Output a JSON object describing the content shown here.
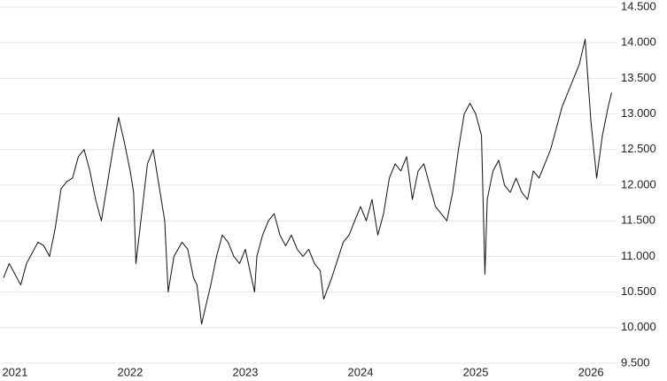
{
  "chart_data": {
    "type": "line",
    "color": "#111111",
    "grid": true,
    "y_axis_side": "right",
    "x": [
      2020.9,
      2020.95,
      2021.0,
      2021.05,
      2021.1,
      2021.15,
      2021.2,
      2021.25,
      2021.3,
      2021.35,
      2021.4,
      2021.45,
      2021.5,
      2021.55,
      2021.6,
      2021.65,
      2021.7,
      2021.75,
      2021.8,
      2021.85,
      2021.9,
      2021.95,
      2022.0,
      2022.03,
      2022.05,
      2022.1,
      2022.15,
      2022.2,
      2022.25,
      2022.3,
      2022.33,
      2022.38,
      2022.45,
      2022.5,
      2022.55,
      2022.58,
      2022.62,
      2022.7,
      2022.75,
      2022.8,
      2022.85,
      2022.9,
      2022.95,
      2023.0,
      2023.08,
      2023.1,
      2023.15,
      2023.2,
      2023.25,
      2023.3,
      2023.35,
      2023.4,
      2023.45,
      2023.5,
      2023.55,
      2023.6,
      2023.65,
      2023.68,
      2023.75,
      2023.8,
      2023.85,
      2023.9,
      2023.95,
      2024.0,
      2024.05,
      2024.1,
      2024.15,
      2024.2,
      2024.25,
      2024.3,
      2024.35,
      2024.4,
      2024.45,
      2024.5,
      2024.55,
      2024.6,
      2024.65,
      2024.7,
      2024.75,
      2024.8,
      2024.85,
      2024.9,
      2024.95,
      2025.0,
      2025.05,
      2025.08,
      2025.1,
      2025.15,
      2025.2,
      2025.25,
      2025.3,
      2025.35,
      2025.4,
      2025.45,
      2025.5,
      2025.55,
      2025.6,
      2025.65,
      2025.7,
      2025.75,
      2025.8,
      2025.85,
      2025.9,
      2025.95,
      2026.0,
      2026.05,
      2026.1,
      2026.15,
      2026.18
    ],
    "values": [
      10700,
      10900,
      10750,
      10600,
      10900,
      11050,
      11200,
      11150,
      11000,
      11400,
      11950,
      12050,
      12100,
      12400,
      12500,
      12200,
      11800,
      11500,
      12000,
      12500,
      12950,
      12600,
      12200,
      11900,
      10900,
      11600,
      12300,
      12500,
      12000,
      11500,
      10500,
      11000,
      11200,
      11100,
      10700,
      10600,
      10050,
      10600,
      11000,
      11300,
      11200,
      11000,
      10900,
      11100,
      10500,
      11000,
      11300,
      11500,
      11600,
      11300,
      11150,
      11300,
      11100,
      11000,
      11100,
      10900,
      10800,
      10400,
      10700,
      10950,
      11200,
      11300,
      11500,
      11700,
      11500,
      11800,
      11300,
      11600,
      12100,
      12300,
      12200,
      12400,
      11800,
      12200,
      12300,
      12000,
      11700,
      11600,
      11500,
      11900,
      12500,
      13000,
      13150,
      13000,
      12700,
      10750,
      11800,
      12200,
      12350,
      12000,
      11900,
      12100,
      11900,
      11800,
      12200,
      12100,
      12300,
      12500,
      12800,
      13100,
      13300,
      13500,
      13700,
      14050,
      12900,
      12100,
      12700,
      13100,
      13300
    ],
    "xlim": [
      2020.87,
      2026.23
    ],
    "xticks": [
      2021,
      2022,
      2023,
      2024,
      2025,
      2026
    ],
    "ylim": [
      9500,
      14500
    ],
    "yticks": [
      {
        "value": 9500,
        "label": "9.500"
      },
      {
        "value": 10000,
        "label": "10.000"
      },
      {
        "value": 10500,
        "label": "10.500"
      },
      {
        "value": 11000,
        "label": "11.000"
      },
      {
        "value": 11500,
        "label": "11.500"
      },
      {
        "value": 12000,
        "label": "12.000"
      },
      {
        "value": 12500,
        "label": "12.500"
      },
      {
        "value": 13000,
        "label": "13.000"
      },
      {
        "value": 13500,
        "label": "13.500"
      },
      {
        "value": 14000,
        "label": "14.000"
      },
      {
        "value": 14500,
        "label": "14.500"
      }
    ]
  }
}
